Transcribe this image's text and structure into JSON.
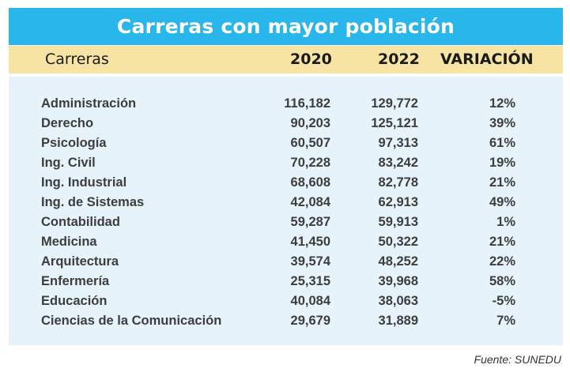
{
  "chart_data": {
    "type": "table",
    "title": "Carreras con mayor población",
    "columns": [
      "Carreras",
      "2020",
      "2022",
      "VARIACIÓN"
    ],
    "rows": [
      {
        "name": "Administración",
        "y2020": "116,182",
        "y2022": "129,772",
        "variation": "12%"
      },
      {
        "name": "Derecho",
        "y2020": "90,203",
        "y2022": "125,121",
        "variation": "39%"
      },
      {
        "name": "Psicología",
        "y2020": "60,507",
        "y2022": "97,313",
        "variation": "61%"
      },
      {
        "name": "Ing. Civil",
        "y2020": "70,228",
        "y2022": "83,242",
        "variation": "19%"
      },
      {
        "name": "Ing. Industrial",
        "y2020": "68,608",
        "y2022": "82,778",
        "variation": "21%"
      },
      {
        "name": "Ing. de Sistemas",
        "y2020": "42,084",
        "y2022": "62,913",
        "variation": "49%"
      },
      {
        "name": "Contabilidad",
        "y2020": "59,287",
        "y2022": "59,913",
        "variation": "1%"
      },
      {
        "name": "Medicina",
        "y2020": "41,450",
        "y2022": "50,322",
        "variation": "21%"
      },
      {
        "name": "Arquitectura",
        "y2020": "39,574",
        "y2022": "48,252",
        "variation": "22%"
      },
      {
        "name": "Enfermería",
        "y2020": "25,315",
        "y2022": "39,968",
        "variation": "58%"
      },
      {
        "name": "Educación",
        "y2020": "40,084",
        "y2022": "38,063",
        "variation": "-5%"
      },
      {
        "name": "Ciencias de la Comunicación",
        "y2020": "29,679",
        "y2022": "31,889",
        "variation": "7%"
      }
    ],
    "source": "Fuente: SUNEDU"
  },
  "colors": {
    "title_background": "#29b6ea",
    "header_background": "#f7e4a3",
    "body_background": "#e6f3fb"
  }
}
